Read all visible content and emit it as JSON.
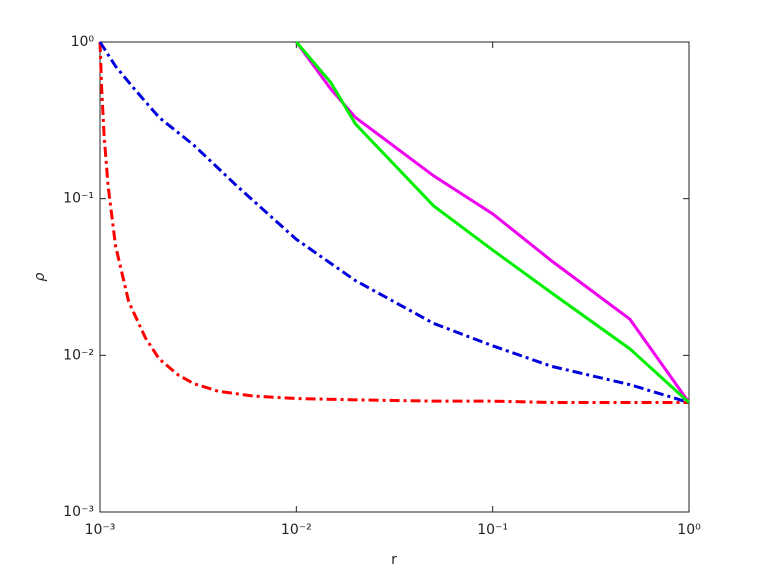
{
  "chart_data": {
    "type": "line",
    "xlabel": "r",
    "ylabel": "ρ",
    "xscale": "log",
    "yscale": "log",
    "xlim": [
      0.001,
      1
    ],
    "ylim": [
      0.001,
      1
    ],
    "xticks": [
      {
        "value": 0.001,
        "label": "10⁻³"
      },
      {
        "value": 0.01,
        "label": "10⁻²"
      },
      {
        "value": 0.1,
        "label": "10⁻¹"
      },
      {
        "value": 1,
        "label": "10⁰"
      }
    ],
    "yticks": [
      {
        "value": 0.001,
        "label": "10⁻³"
      },
      {
        "value": 0.01,
        "label": "10⁻²"
      },
      {
        "value": 0.1,
        "label": "10⁻¹"
      },
      {
        "value": 1,
        "label": "10⁰"
      }
    ],
    "series": [
      {
        "color": "#ff0000",
        "dash": "dashdot",
        "x": [
          0.001,
          0.00102,
          0.00105,
          0.0011,
          0.0012,
          0.0014,
          0.0017,
          0.002,
          0.0025,
          0.003,
          0.004,
          0.006,
          0.01,
          0.02,
          0.05,
          0.1,
          0.2,
          0.5,
          1
        ],
        "values": [
          1,
          0.5,
          0.25,
          0.12,
          0.05,
          0.022,
          0.013,
          0.0095,
          0.0075,
          0.0066,
          0.0059,
          0.0055,
          0.0053,
          0.0052,
          0.0051,
          0.0051,
          0.005,
          0.005,
          0.005
        ]
      },
      {
        "color": "#0000dd",
        "dash": "dashdot",
        "x": [
          0.001,
          0.0012,
          0.0015,
          0.002,
          0.003,
          0.005,
          0.01,
          0.02,
          0.05,
          0.1,
          0.2,
          0.5,
          1
        ],
        "values": [
          1,
          0.7,
          0.5,
          0.33,
          0.22,
          0.12,
          0.055,
          0.03,
          0.016,
          0.0115,
          0.0085,
          0.0065,
          0.005
        ]
      },
      {
        "color": "#ee00ee",
        "dash": "solid",
        "x": [
          0.01,
          0.015,
          0.02,
          0.05,
          0.1,
          0.2,
          0.5,
          1
        ],
        "values": [
          1,
          0.5,
          0.33,
          0.14,
          0.08,
          0.04,
          0.017,
          0.005
        ]
      },
      {
        "color": "#00ee00",
        "dash": "solid",
        "x": [
          0.01,
          0.015,
          0.02,
          0.05,
          0.1,
          0.2,
          0.5,
          1
        ],
        "values": [
          1,
          0.55,
          0.3,
          0.09,
          0.047,
          0.025,
          0.011,
          0.005
        ]
      }
    ]
  }
}
